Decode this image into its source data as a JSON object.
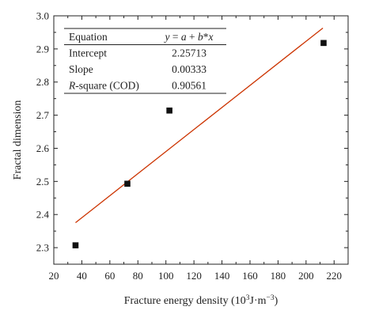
{
  "chart_data": {
    "type": "scatter",
    "xlabel_prefix": "Fracture energy density (10",
    "xlabel_sup1": "3",
    "xlabel_mid": "J·m",
    "xlabel_sup2": "−3",
    "xlabel_suffix": ")",
    "ylabel": "Fractal dimension",
    "xlim": [
      20,
      230
    ],
    "ylim": [
      2.25,
      3.0
    ],
    "x_ticks": [
      "20",
      "40",
      "60",
      "80",
      "100",
      "120",
      "140",
      "160",
      "180",
      "200",
      "220"
    ],
    "y_ticks": [
      "2.3",
      "2.4",
      "2.5",
      "2.6",
      "2.7",
      "2.8",
      "2.9",
      "3.0"
    ],
    "series": [
      {
        "marker": "square",
        "color": "#111111",
        "points": [
          {
            "x": 35.5,
            "y": 2.307
          },
          {
            "x": 72.5,
            "y": 2.493
          },
          {
            "x": 102.5,
            "y": 2.714
          },
          {
            "x": 212.5,
            "y": 2.918
          }
        ]
      }
    ],
    "fit_line": {
      "color": "#cc3300",
      "intercept": 2.25713,
      "slope": 0.00333,
      "x_range": [
        35.5,
        212
      ]
    },
    "fit_table": {
      "rows": [
        {
          "label": "Equation",
          "value": "y = a + b*x"
        },
        {
          "label": "Intercept",
          "value": "2.25713"
        },
        {
          "label": "Slope",
          "value": "0.00333"
        },
        {
          "label": "R-square (COD)",
          "value": "0.90561"
        }
      ]
    }
  }
}
